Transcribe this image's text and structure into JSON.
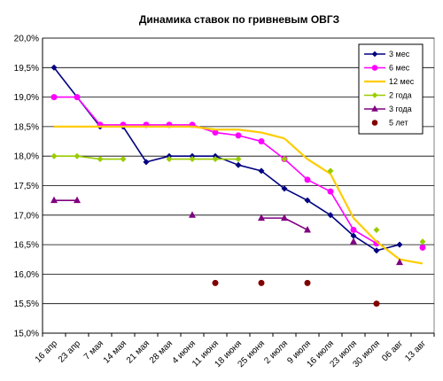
{
  "chart_data": {
    "type": "line",
    "title": "Динамика ставок по гривневым ОВГЗ",
    "categories": [
      "16 апр",
      "23 апр",
      "7 мая",
      "14 мая",
      "21 мая",
      "28 мая",
      "4 июня",
      "11 июня",
      "18 июня",
      "25 июня",
      "2 июля",
      "9 июля",
      "16 июля",
      "23 июля",
      "30 июля",
      "06 авг",
      "13 авг"
    ],
    "ylim": [
      15.0,
      20.0
    ],
    "yticks": [
      "15,0%",
      "15,5%",
      "16,0%",
      "16,5%",
      "17,0%",
      "17,5%",
      "18,0%",
      "18,5%",
      "19,0%",
      "19,5%",
      "20,0%"
    ],
    "grid": "horizontal",
    "legend_position": "top-right",
    "series": [
      {
        "name": "3 мес",
        "color": "#000080",
        "style": "line-marker",
        "marker": "diamond",
        "values": [
          19.5,
          19.0,
          18.5,
          18.5,
          17.9,
          18.0,
          18.0,
          18.0,
          17.85,
          17.75,
          17.45,
          17.25,
          17.0,
          16.65,
          16.4,
          16.5,
          null
        ]
      },
      {
        "name": "6 мес",
        "color": "#FF00FF",
        "style": "line-marker",
        "marker": "circle",
        "values": [
          19.0,
          19.0,
          18.53,
          18.53,
          18.53,
          18.53,
          18.53,
          18.4,
          18.35,
          18.25,
          17.95,
          17.6,
          17.4,
          16.75,
          16.52,
          null,
          16.45
        ]
      },
      {
        "name": "12 мес",
        "color": "#FFCC00",
        "style": "line",
        "values": [
          18.5,
          18.5,
          18.5,
          18.5,
          18.5,
          18.5,
          18.5,
          18.45,
          18.45,
          18.4,
          18.3,
          17.95,
          17.7,
          16.95,
          16.55,
          16.25,
          16.18
        ]
      },
      {
        "name": "2 года",
        "color": "#99CC00",
        "style": "line-marker",
        "marker": "diamond",
        "values": [
          18.0,
          18.0,
          17.95,
          17.95,
          null,
          17.95,
          17.95,
          17.95,
          17.95,
          null,
          17.95,
          null,
          17.75,
          null,
          16.75,
          null,
          16.55
        ]
      },
      {
        "name": "3 года",
        "color": "#800080",
        "style": "line-marker",
        "marker": "triangle",
        "values": [
          17.25,
          17.25,
          null,
          null,
          null,
          null,
          17.0,
          null,
          null,
          16.95,
          16.95,
          16.75,
          null,
          16.55,
          null,
          16.2,
          null
        ]
      },
      {
        "name": "5 лет",
        "color": "#800000",
        "style": "marker",
        "marker": "circle",
        "values": [
          null,
          null,
          null,
          null,
          null,
          null,
          null,
          15.85,
          null,
          15.85,
          null,
          15.85,
          null,
          null,
          15.5,
          null,
          null
        ]
      }
    ]
  }
}
